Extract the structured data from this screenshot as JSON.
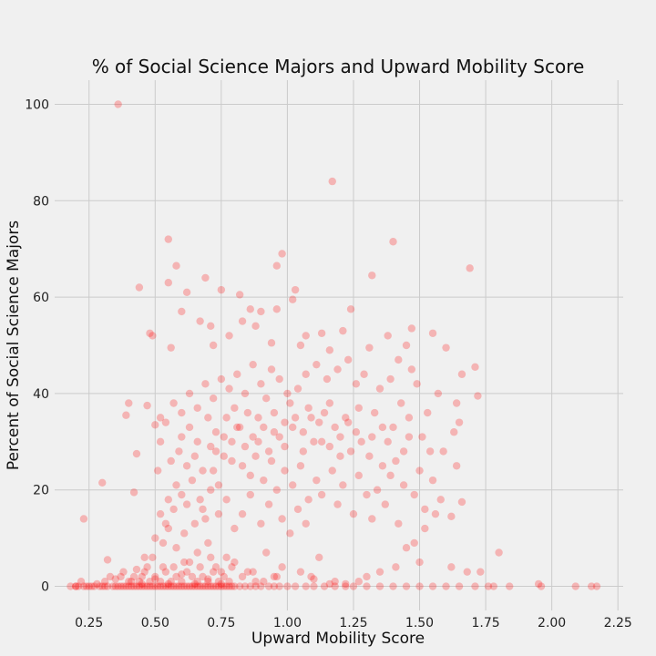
{
  "chart_data": {
    "type": "scatter",
    "title": "% of Social Science Majors and Upward Mobility Score",
    "xlabel": "Upward Mobility Score",
    "ylabel": "Percent of Social Science Majors",
    "xlim": [
      0.12,
      2.27
    ],
    "ylim": [
      -5,
      105
    ],
    "xticks": [
      "0.25",
      "0.50",
      "0.75",
      "1.00",
      "1.25",
      "1.50",
      "1.75",
      "2.00",
      "2.25"
    ],
    "yticks": [
      "0",
      "20",
      "40",
      "60",
      "80",
      "100"
    ],
    "grid": true,
    "legend": "none",
    "marker_color": "#ff0000",
    "marker_opacity": 0.25,
    "background_color": "#f0f0f0",
    "grid_color": "#cbcbcb",
    "points": [
      [
        0.36,
        100
      ],
      [
        1.17,
        84
      ],
      [
        0.98,
        69
      ],
      [
        1.4,
        71.5
      ],
      [
        0.55,
        72
      ],
      [
        1.69,
        66
      ],
      [
        0.96,
        66.5
      ],
      [
        0.58,
        66.5
      ],
      [
        1.32,
        64.5
      ],
      [
        0.69,
        64
      ],
      [
        0.44,
        62
      ],
      [
        0.75,
        61.5
      ],
      [
        1.03,
        61.5
      ],
      [
        0.62,
        61
      ],
      [
        0.82,
        60.5
      ],
      [
        1.02,
        59.5
      ],
      [
        0.86,
        57.5
      ],
      [
        0.9,
        57
      ],
      [
        0.96,
        57.5
      ],
      [
        1.24,
        57.5
      ],
      [
        0.55,
        63
      ],
      [
        0.6,
        57
      ],
      [
        0.48,
        52.5
      ],
      [
        0.49,
        52
      ],
      [
        0.71,
        54
      ],
      [
        0.67,
        55
      ],
      [
        0.83,
        55
      ],
      [
        0.88,
        54
      ],
      [
        1.07,
        52
      ],
      [
        1.13,
        52.5
      ],
      [
        1.21,
        53
      ],
      [
        1.47,
        53.5
      ],
      [
        1.55,
        52.5
      ],
      [
        1.38,
        52
      ],
      [
        0.78,
        52
      ],
      [
        0.56,
        49.5
      ],
      [
        0.72,
        50
      ],
      [
        0.94,
        50.5
      ],
      [
        1.05,
        50
      ],
      [
        1.16,
        49
      ],
      [
        1.6,
        49.5
      ],
      [
        1.45,
        50
      ],
      [
        1.31,
        49.5
      ],
      [
        0.23,
        14
      ],
      [
        0.3,
        21.5
      ],
      [
        0.39,
        35.5
      ],
      [
        0.4,
        38
      ],
      [
        0.43,
        27.5
      ],
      [
        0.42,
        19.5
      ],
      [
        0.47,
        37.5
      ],
      [
        0.5,
        33.5
      ],
      [
        0.52,
        35
      ],
      [
        0.51,
        24
      ],
      [
        1.8,
        7
      ],
      [
        1.95,
        0.5
      ],
      [
        2.09,
        0
      ],
      [
        2.17,
        0
      ],
      [
        2.15,
        0
      ],
      [
        1.96,
        0
      ],
      [
        1.84,
        0
      ],
      [
        1.76,
        0
      ],
      [
        1.71,
        0
      ],
      [
        1.73,
        3
      ],
      [
        1.68,
        3
      ],
      [
        1.62,
        4
      ],
      [
        1.72,
        39.5
      ],
      [
        1.71,
        45.5
      ],
      [
        1.66,
        44
      ],
      [
        1.64,
        38
      ],
      [
        1.57,
        40
      ],
      [
        1.65,
        34
      ],
      [
        1.63,
        32
      ],
      [
        1.59,
        28
      ],
      [
        1.64,
        25
      ],
      [
        1.66,
        17.5
      ],
      [
        1.62,
        14.5
      ],
      [
        1.56,
        15
      ],
      [
        1.52,
        16
      ],
      [
        1.48,
        9
      ],
      [
        1.45,
        8
      ],
      [
        1.5,
        5
      ],
      [
        1.41,
        4
      ],
      [
        1.35,
        3
      ],
      [
        1.3,
        2
      ],
      [
        1.27,
        1
      ],
      [
        1.22,
        0.5
      ],
      [
        1.18,
        1
      ],
      [
        1.1,
        1.5
      ],
      [
        1.05,
        3
      ],
      [
        1.12,
        6
      ],
      [
        0.98,
        4
      ],
      [
        0.95,
        2
      ],
      [
        0.92,
        7
      ],
      [
        0.88,
        1
      ],
      [
        0.85,
        3
      ],
      [
        0.8,
        5
      ],
      [
        0.77,
        6
      ],
      [
        0.73,
        4
      ],
      [
        0.7,
        9
      ],
      [
        0.66,
        7
      ],
      [
        0.63,
        5
      ],
      [
        0.61,
        11
      ],
      [
        0.58,
        8
      ],
      [
        0.55,
        12
      ],
      [
        0.53,
        9
      ],
      [
        0.49,
        6
      ],
      [
        0.47,
        4
      ],
      [
        0.45,
        2
      ],
      [
        0.41,
        1
      ],
      [
        0.38,
        3
      ],
      [
        0.35,
        1.5
      ],
      [
        0.33,
        2
      ],
      [
        0.31,
        1
      ],
      [
        0.28,
        0.5
      ],
      [
        0.26,
        0
      ],
      [
        0.22,
        1
      ],
      [
        0.2,
        0
      ],
      [
        0.18,
        0
      ],
      [
        0.24,
        0
      ],
      [
        0.27,
        0
      ],
      [
        0.32,
        5.5
      ],
      [
        0.37,
        2
      ],
      [
        0.43,
        3.5
      ],
      [
        0.46,
        6
      ],
      [
        0.5,
        10
      ],
      [
        0.54,
        13
      ],
      [
        0.57,
        16
      ],
      [
        0.6,
        19
      ],
      [
        0.64,
        22
      ],
      [
        0.67,
        18
      ],
      [
        0.69,
        14
      ],
      [
        0.72,
        24
      ],
      [
        0.74,
        21
      ],
      [
        0.76,
        27
      ],
      [
        0.79,
        30
      ],
      [
        0.81,
        33
      ],
      [
        0.84,
        29
      ],
      [
        0.87,
        31
      ],
      [
        0.89,
        35
      ],
      [
        0.91,
        33
      ],
      [
        0.93,
        28
      ],
      [
        0.95,
        36
      ],
      [
        0.97,
        31
      ],
      [
        0.99,
        34
      ],
      [
        1.01,
        38
      ],
      [
        1.03,
        35
      ],
      [
        1.06,
        32
      ],
      [
        1.08,
        37
      ],
      [
        1.1,
        30
      ],
      [
        1.12,
        34
      ],
      [
        1.14,
        36
      ],
      [
        1.16,
        29
      ],
      [
        1.18,
        33
      ],
      [
        1.2,
        31
      ],
      [
        1.22,
        35
      ],
      [
        1.24,
        28
      ],
      [
        1.26,
        32
      ],
      [
        1.28,
        30
      ],
      [
        1.31,
        27
      ],
      [
        1.33,
        36
      ],
      [
        1.36,
        33
      ],
      [
        1.38,
        30
      ],
      [
        1.41,
        26
      ],
      [
        1.43,
        38
      ],
      [
        1.46,
        35
      ],
      [
        1.49,
        42
      ],
      [
        1.51,
        31
      ],
      [
        1.54,
        28
      ],
      [
        1.53,
        36
      ],
      [
        1.47,
        45
      ],
      [
        1.42,
        47
      ],
      [
        1.39,
        43
      ],
      [
        1.35,
        41
      ],
      [
        1.29,
        44
      ],
      [
        1.26,
        42
      ],
      [
        1.23,
        47
      ],
      [
        1.19,
        45
      ],
      [
        1.15,
        43
      ],
      [
        1.11,
        46
      ],
      [
        1.07,
        44
      ],
      [
        1.04,
        41
      ],
      [
        1.0,
        40
      ],
      [
        0.97,
        43
      ],
      [
        0.94,
        45
      ],
      [
        0.9,
        42
      ],
      [
        0.87,
        46
      ],
      [
        0.84,
        40
      ],
      [
        0.81,
        44
      ],
      [
        0.78,
        41
      ],
      [
        0.75,
        43
      ],
      [
        0.72,
        39
      ],
      [
        0.69,
        42
      ],
      [
        0.66,
        37
      ],
      [
        0.63,
        40
      ],
      [
        0.6,
        36
      ],
      [
        0.57,
        38
      ],
      [
        0.54,
        34
      ],
      [
        0.52,
        30
      ],
      [
        0.56,
        26
      ],
      [
        0.59,
        28
      ],
      [
        0.62,
        25
      ],
      [
        0.65,
        27
      ],
      [
        0.68,
        24
      ],
      [
        0.71,
        29
      ],
      [
        0.73,
        32
      ],
      [
        0.77,
        35
      ],
      [
        0.8,
        37
      ],
      [
        0.83,
        25
      ],
      [
        0.86,
        23
      ],
      [
        0.88,
        27
      ],
      [
        0.91,
        22
      ],
      [
        0.94,
        26
      ],
      [
        0.96,
        20
      ],
      [
        0.99,
        24
      ],
      [
        1.02,
        21
      ],
      [
        1.05,
        25
      ],
      [
        1.08,
        18
      ],
      [
        1.11,
        22
      ],
      [
        1.13,
        19
      ],
      [
        1.17,
        24
      ],
      [
        1.19,
        17
      ],
      [
        1.21,
        21
      ],
      [
        1.25,
        15
      ],
      [
        1.27,
        23
      ],
      [
        1.3,
        19
      ],
      [
        1.32,
        14
      ],
      [
        1.34,
        20
      ],
      [
        1.37,
        17
      ],
      [
        1.39,
        23
      ],
      [
        1.42,
        13
      ],
      [
        1.44,
        21
      ],
      [
        1.48,
        19
      ],
      [
        1.5,
        24
      ],
      [
        1.52,
        12
      ],
      [
        1.55,
        22
      ],
      [
        1.58,
        18
      ],
      [
        0.98,
        14
      ],
      [
        1.01,
        11
      ],
      [
        1.04,
        16
      ],
      [
        1.07,
        13
      ],
      [
        0.93,
        17
      ],
      [
        0.9,
        13
      ],
      [
        0.86,
        19
      ],
      [
        0.83,
        15
      ],
      [
        0.8,
        12
      ],
      [
        0.77,
        18
      ],
      [
        0.74,
        15
      ],
      [
        0.71,
        20
      ],
      [
        0.68,
        16
      ],
      [
        0.65,
        13
      ],
      [
        0.62,
        17
      ],
      [
        0.58,
        21
      ],
      [
        0.55,
        18
      ],
      [
        0.52,
        15
      ],
      [
        0.6,
        31
      ],
      [
        0.63,
        33
      ],
      [
        0.66,
        30
      ],
      [
        0.7,
        35
      ],
      [
        0.73,
        28
      ],
      [
        0.76,
        31
      ],
      [
        0.79,
        26
      ],
      [
        0.82,
        33
      ],
      [
        0.85,
        36
      ],
      [
        0.89,
        30
      ],
      [
        0.92,
        39
      ],
      [
        0.95,
        32
      ],
      [
        0.99,
        29
      ],
      [
        1.02,
        33
      ],
      [
        1.06,
        28
      ],
      [
        1.09,
        35
      ],
      [
        1.13,
        30
      ],
      [
        1.16,
        38
      ],
      [
        1.2,
        27
      ],
      [
        1.23,
        34
      ],
      [
        1.27,
        37
      ],
      [
        1.32,
        31
      ],
      [
        1.36,
        25
      ],
      [
        1.4,
        33
      ],
      [
        1.44,
        28
      ],
      [
        1.46,
        31
      ],
      [
        0.2,
        0
      ],
      [
        0.21,
        0
      ],
      [
        0.23,
        0
      ],
      [
        0.25,
        0
      ],
      [
        0.29,
        0
      ],
      [
        0.3,
        0
      ],
      [
        0.31,
        0
      ],
      [
        0.32,
        0
      ],
      [
        0.34,
        0
      ],
      [
        0.35,
        0
      ],
      [
        0.36,
        0
      ],
      [
        0.37,
        0
      ],
      [
        0.38,
        0
      ],
      [
        0.39,
        0
      ],
      [
        0.4,
        0
      ],
      [
        0.41,
        0
      ],
      [
        0.42,
        0
      ],
      [
        0.43,
        0
      ],
      [
        0.44,
        0
      ],
      [
        0.45,
        0
      ],
      [
        0.46,
        0
      ],
      [
        0.47,
        0
      ],
      [
        0.48,
        0
      ],
      [
        0.49,
        0
      ],
      [
        0.5,
        0
      ],
      [
        0.51,
        0
      ],
      [
        0.52,
        0
      ],
      [
        0.53,
        0
      ],
      [
        0.54,
        0
      ],
      [
        0.55,
        0
      ],
      [
        0.56,
        0
      ],
      [
        0.57,
        0
      ],
      [
        0.58,
        0
      ],
      [
        0.59,
        0
      ],
      [
        0.6,
        0
      ],
      [
        0.61,
        0
      ],
      [
        0.62,
        0
      ],
      [
        0.63,
        0
      ],
      [
        0.64,
        0
      ],
      [
        0.65,
        0
      ],
      [
        0.66,
        0
      ],
      [
        0.67,
        0
      ],
      [
        0.68,
        0
      ],
      [
        0.69,
        0
      ],
      [
        0.7,
        0
      ],
      [
        0.71,
        0
      ],
      [
        0.72,
        0
      ],
      [
        0.73,
        0
      ],
      [
        0.74,
        0
      ],
      [
        0.75,
        0
      ],
      [
        0.76,
        0
      ],
      [
        0.77,
        0
      ],
      [
        0.78,
        0
      ],
      [
        0.79,
        0
      ],
      [
        0.8,
        0
      ],
      [
        0.82,
        0
      ],
      [
        0.84,
        0
      ],
      [
        0.86,
        0
      ],
      [
        0.88,
        0
      ],
      [
        0.9,
        0
      ],
      [
        0.93,
        0
      ],
      [
        0.95,
        0
      ],
      [
        0.97,
        0
      ],
      [
        1.0,
        0
      ],
      [
        1.03,
        0
      ],
      [
        1.07,
        0
      ],
      [
        1.1,
        0
      ],
      [
        1.14,
        0
      ],
      [
        1.18,
        0
      ],
      [
        1.22,
        0
      ],
      [
        1.25,
        0
      ],
      [
        1.3,
        0
      ],
      [
        1.35,
        0
      ],
      [
        1.4,
        0
      ],
      [
        1.45,
        0
      ],
      [
        1.5,
        0
      ],
      [
        1.55,
        0
      ],
      [
        1.6,
        0
      ],
      [
        1.65,
        0
      ],
      [
        1.78,
        0
      ],
      [
        0.4,
        1
      ],
      [
        0.42,
        2
      ],
      [
        0.44,
        1
      ],
      [
        0.46,
        3
      ],
      [
        0.48,
        1
      ],
      [
        0.5,
        2
      ],
      [
        0.52,
        1
      ],
      [
        0.54,
        3
      ],
      [
        0.56,
        1
      ],
      [
        0.58,
        2
      ],
      [
        0.6,
        1
      ],
      [
        0.62,
        3
      ],
      [
        0.64,
        2
      ],
      [
        0.66,
        1
      ],
      [
        0.68,
        2
      ],
      [
        0.7,
        1
      ],
      [
        0.72,
        3
      ],
      [
        0.74,
        1
      ],
      [
        0.76,
        2
      ],
      [
        0.78,
        1
      ],
      [
        0.45,
        0.5
      ],
      [
        0.5,
        1.5
      ],
      [
        0.55,
        0.5
      ],
      [
        0.6,
        2.5
      ],
      [
        0.65,
        0.5
      ],
      [
        0.7,
        1.5
      ],
      [
        0.75,
        0.5
      ],
      [
        0.53,
        4
      ],
      [
        0.57,
        4
      ],
      [
        0.61,
        5
      ],
      [
        0.67,
        4
      ],
      [
        0.71,
        6
      ],
      [
        0.75,
        3
      ],
      [
        0.79,
        4
      ],
      [
        0.83,
        2
      ],
      [
        0.87,
        3
      ],
      [
        0.91,
        1
      ],
      [
        0.96,
        2
      ],
      [
        1.09,
        2
      ],
      [
        1.16,
        0.5
      ]
    ]
  }
}
